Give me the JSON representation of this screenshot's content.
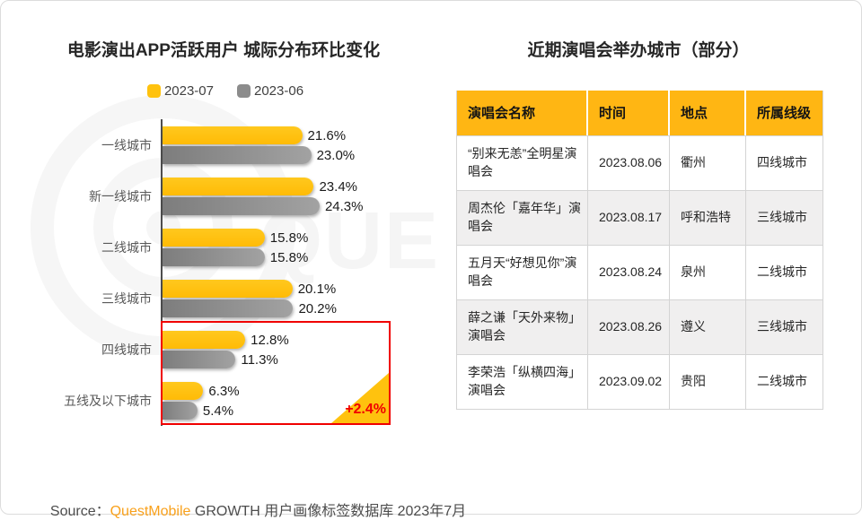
{
  "page": {
    "left_title": "电影演出APP活跃用户 城际分布环比变化",
    "right_title": "近期演唱会举办城市（部分）",
    "watermark_text": "QUES",
    "source": {
      "prefix": "Source：",
      "brand": "QuestMobile",
      "suffix": " GROWTH 用户画像标签数据库 2023年7月"
    }
  },
  "chart_data": {
    "type": "bar",
    "orientation": "horizontal",
    "title": "电影演出APP活跃用户 城际分布环比变化",
    "categories": [
      "一线城市",
      "新一线城市",
      "二线城市",
      "三线城市",
      "四线城市",
      "五线及以下城市"
    ],
    "series": [
      {
        "name": "2023-07",
        "color": "#FFC20E",
        "values": [
          21.6,
          23.4,
          15.8,
          20.1,
          12.8,
          6.3
        ]
      },
      {
        "name": "2023-06",
        "color": "#8C8C8C",
        "values": [
          23.0,
          24.3,
          15.8,
          20.2,
          11.3,
          5.4
        ]
      }
    ],
    "value_suffix": "%",
    "xlim": [
      0,
      25
    ],
    "grid": false,
    "legend_position": "top",
    "annotation": {
      "text": "+2.4%",
      "color": "#F00000",
      "highlight_categories": [
        "四线城市",
        "五线及以下城市"
      ]
    }
  },
  "table": {
    "headers": [
      "演唱会名称",
      "时间",
      "地点",
      "所属线级"
    ],
    "rows": [
      {
        "name": "“别来无恙”全明星演唱会",
        "date": "2023.08.06",
        "city": "衢州",
        "tier": "四线城市"
      },
      {
        "name": "周杰伦「嘉年华」演唱会",
        "date": "2023.08.17",
        "city": "呼和浩特",
        "tier": "三线城市"
      },
      {
        "name": "五月天“好想见你”演唱会",
        "date": "2023.08.24",
        "city": "泉州",
        "tier": "二线城市"
      },
      {
        "name": "薛之谦「天外来物」演唱会",
        "date": "2023.08.26",
        "city": "遵义",
        "tier": "三线城市"
      },
      {
        "name": "李荣浩「纵横四海」演唱会",
        "date": "2023.09.02",
        "city": "贵阳",
        "tier": "二线城市"
      }
    ]
  },
  "colors": {
    "bar_2023_07": "#FFC20E",
    "bar_2023_06": "#8C8C8C",
    "table_header_bg": "#FFB613",
    "highlight_red": "#F00000",
    "brand_orange": "#F9A11B"
  }
}
